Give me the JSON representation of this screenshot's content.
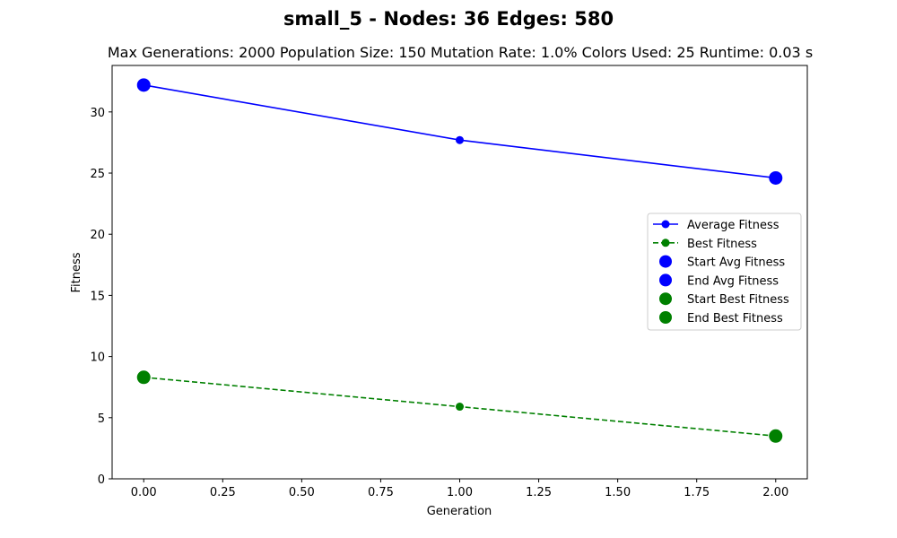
{
  "chart_data": {
    "type": "line",
    "title": "small_5 - Nodes: 36 Edges: 580",
    "subtitle": "Max Generations: 2000  Population Size: 150  Mutation Rate: 1.0%  Colors Used: 25  Runtime: 0.03 s",
    "xlabel": "Generation",
    "ylabel": "Fitness",
    "xlim": [
      -0.1,
      2.1
    ],
    "ylim": [
      0,
      33.8
    ],
    "xticks": [
      "0.00",
      "0.25",
      "0.50",
      "0.75",
      "1.00",
      "1.25",
      "1.50",
      "1.75",
      "2.00"
    ],
    "yticks": [
      "0",
      "5",
      "10",
      "15",
      "20",
      "25",
      "30"
    ],
    "grid": false,
    "legend_position": "center-right",
    "x": [
      0,
      1,
      2
    ],
    "series": [
      {
        "name": "Average Fitness",
        "values": [
          32.2,
          27.7,
          24.6
        ],
        "color": "#0000ff",
        "style": "solid",
        "marker": "circle"
      },
      {
        "name": "Best Fitness",
        "values": [
          8.3,
          5.9,
          3.5
        ],
        "color": "#008000",
        "style": "dashed",
        "marker": "circle"
      }
    ],
    "highlights": [
      {
        "name": "Start Avg Fitness",
        "x": 0,
        "y": 32.2,
        "color": "#0000ff"
      },
      {
        "name": "End Avg Fitness",
        "x": 2,
        "y": 24.6,
        "color": "#0000ff"
      },
      {
        "name": "Start Best Fitness",
        "x": 0,
        "y": 8.3,
        "color": "#008000"
      },
      {
        "name": "End Best Fitness",
        "x": 2,
        "y": 3.5,
        "color": "#008000"
      }
    ]
  }
}
